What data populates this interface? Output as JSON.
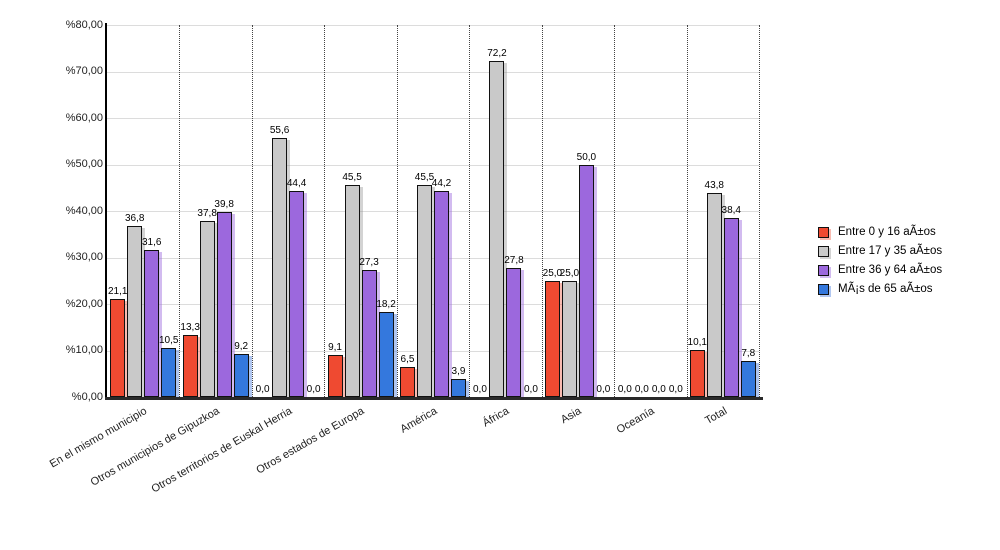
{
  "chart_data": {
    "type": "bar",
    "title": "",
    "xlabel": "",
    "ylabel": "",
    "y_tick_prefix": "%",
    "y_tick_suffix": ",00",
    "ylim": [
      0,
      80
    ],
    "y_step": 10,
    "grid": "horizontal solid, vertical dotted category separators",
    "legend_position": "right",
    "decimal_separator": ",",
    "categories": [
      "En el mismo municipio",
      "Otros municipios de Gipuzkoa",
      "Otros territorios de Euskal Herria",
      "Otros estados de Europa",
      "América",
      "África",
      "Asia",
      "Oceanía",
      "Total"
    ],
    "series": [
      {
        "name": "Entre 0 y 16 aÃ±os",
        "color": "#ef4a31",
        "shadow": "rgba(239,86,60,0.40)",
        "values": [
          21.1,
          13.3,
          0.0,
          9.1,
          6.5,
          0.0,
          25.0,
          0.0,
          10.1
        ]
      },
      {
        "name": "Entre 17 y 35 aÃ±os",
        "color": "#c9c9c9",
        "shadow": "rgba(140,140,140,0.38)",
        "values": [
          36.8,
          37.8,
          55.6,
          45.5,
          45.5,
          72.2,
          25.0,
          0.0,
          43.8
        ]
      },
      {
        "name": "Entre 36 y 64 aÃ±os",
        "color": "#9c68dd",
        "shadow": "rgba(156,104,221,0.45)",
        "values": [
          31.6,
          39.8,
          44.4,
          27.3,
          44.2,
          27.8,
          50.0,
          0.0,
          38.4
        ]
      },
      {
        "name": "MÃ¡s de 65 aÃ±os",
        "color": "#3478dd",
        "shadow": "rgba(82,130,225,0.45)",
        "values": [
          10.5,
          9.2,
          0.0,
          18.2,
          3.9,
          0.0,
          0.0,
          0.0,
          7.8
        ]
      }
    ]
  },
  "layout_colors": {
    "background": "#ffffff",
    "axis": "#000000",
    "gridline": "#dcdcdc",
    "bar_border": "#111111"
  }
}
